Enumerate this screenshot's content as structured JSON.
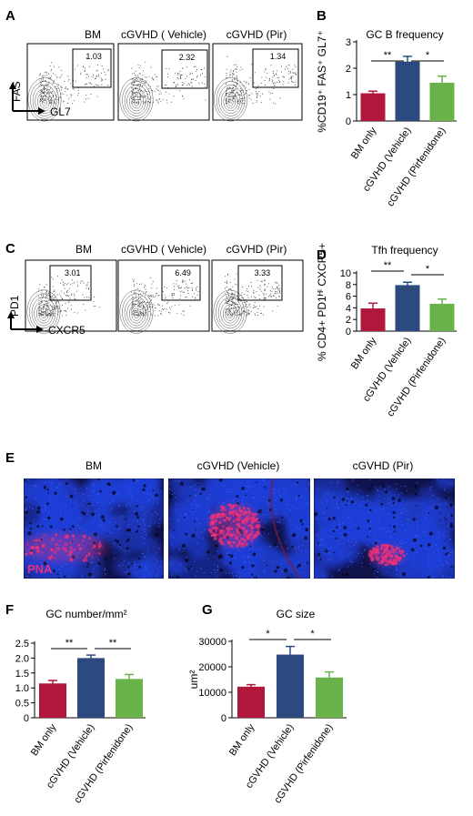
{
  "panels": {
    "A": {
      "letter": "A",
      "titles": [
        "BM",
        "cGVHD ( Vehicle)",
        "cGVHD (Pir)"
      ],
      "gate_values": [
        "1.03",
        "2.32",
        "1.34"
      ],
      "y_axis": "FAS",
      "x_axis": "GL7"
    },
    "C": {
      "letter": "C",
      "titles": [
        "BM",
        "cGVHD ( Vehicle)",
        "cGVHD (Pir)"
      ],
      "gate_values": [
        "3.01",
        "6.49",
        "3.33"
      ],
      "y_axis": "PD1",
      "x_axis": "CXCR5"
    },
    "E": {
      "letter": "E",
      "titles": [
        "BM",
        "cGVHD (Vehicle)",
        "cGVHD (Pir)"
      ],
      "stain_label": "PNA",
      "colors": {
        "nuclei": "#1f3fd8",
        "stain": "#e8307a"
      }
    },
    "B": {
      "letter": "B"
    },
    "D": {
      "letter": "D"
    },
    "F": {
      "letter": "F"
    },
    "G": {
      "letter": "G"
    }
  },
  "colors": {
    "bm": "#b0173a",
    "vehicle": "#2c4a80",
    "pirfenidone": "#69b24a"
  },
  "chart_data": [
    {
      "id": "B",
      "type": "bar",
      "title": "GC B frequency",
      "ylabel": "%CD19⁺ FAS⁺ GL7⁺",
      "categories": [
        "BM only",
        "cGVHD (Vehicle)",
        "cGVHD (Pirfenidone)"
      ],
      "values": [
        1.05,
        2.25,
        1.45
      ],
      "errors": [
        0.08,
        0.2,
        0.25
      ],
      "ylim": [
        0,
        3
      ],
      "yticks": [
        "0",
        "1",
        "2",
        "3"
      ],
      "significance": [
        {
          "from": 0,
          "to": 1,
          "label": "**"
        },
        {
          "from": 1,
          "to": 2,
          "label": "*"
        }
      ]
    },
    {
      "id": "D",
      "type": "bar",
      "title": "Tfh frequency",
      "ylabel": "% CD4+ PD1ᴴⁱ CXCR5+",
      "categories": [
        "BM only",
        "cGVHD (Vehicle)",
        "cGVHD (Pirfenidone)"
      ],
      "values": [
        3.9,
        7.9,
        4.7
      ],
      "errors": [
        0.9,
        0.5,
        0.8
      ],
      "ylim": [
        0,
        10
      ],
      "yticks": [
        "0",
        "2",
        "4",
        "6",
        "8",
        "10"
      ],
      "significance": [
        {
          "from": 0,
          "to": 1,
          "label": "**"
        },
        {
          "from": 1,
          "to": 2,
          "label": "*"
        }
      ]
    },
    {
      "id": "F",
      "type": "bar",
      "title": "GC number/mm²",
      "ylabel": "",
      "categories": [
        "BM only",
        "cGVHD (Vehicle)",
        "cGVHD (Pirfenidone)"
      ],
      "values": [
        1.15,
        2.0,
        1.3
      ],
      "errors": [
        0.1,
        0.1,
        0.15
      ],
      "ylim": [
        0,
        2.5
      ],
      "yticks": [
        "0",
        "0.5",
        "1.0",
        "1.5",
        "2.0",
        "2.5"
      ],
      "significance": [
        {
          "from": 0,
          "to": 1,
          "label": "**"
        },
        {
          "from": 1,
          "to": 2,
          "label": "**"
        }
      ]
    },
    {
      "id": "G",
      "type": "bar",
      "title": "GC size",
      "ylabel": "um²",
      "categories": [
        "BM only",
        "cGVHD (Vehicle)",
        "cGVHD (Pirfenidone)"
      ],
      "values": [
        12200,
        24800,
        15800
      ],
      "errors": [
        800,
        3200,
        2200
      ],
      "ylim": [
        0,
        30000
      ],
      "yticks": [
        "0",
        "10000",
        "20000",
        "30000"
      ],
      "significance": [
        {
          "from": 0,
          "to": 1,
          "label": "*"
        },
        {
          "from": 1,
          "to": 2,
          "label": "*"
        }
      ]
    }
  ]
}
